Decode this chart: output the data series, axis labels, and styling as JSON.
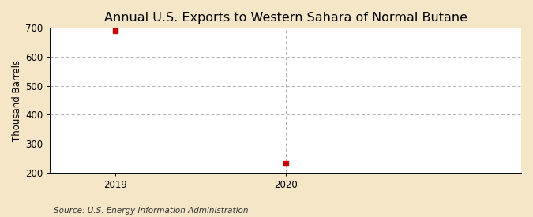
{
  "title": "Annual U.S. Exports to Western Sahara of Normal Butane",
  "ylabel": "Thousand Barrels",
  "source": "Source: U.S. Energy Information Administration",
  "background_color": "#f5e6c8",
  "plot_background_color": "#ffffff",
  "x_data": [
    2019,
    2020
  ],
  "y_data": [
    690,
    231
  ],
  "marker_color": "#cc0000",
  "marker_size": 4,
  "ylim": [
    200,
    700
  ],
  "yticks": [
    200,
    300,
    400,
    500,
    600,
    700
  ],
  "xlim": [
    2018.62,
    2021.38
  ],
  "xticks": [
    2019,
    2020
  ],
  "grid_color": "#b0b0b0",
  "vline_x": 2020,
  "title_fontsize": 11.5,
  "axis_fontsize": 8.5,
  "tick_fontsize": 8.5,
  "source_fontsize": 7.5
}
